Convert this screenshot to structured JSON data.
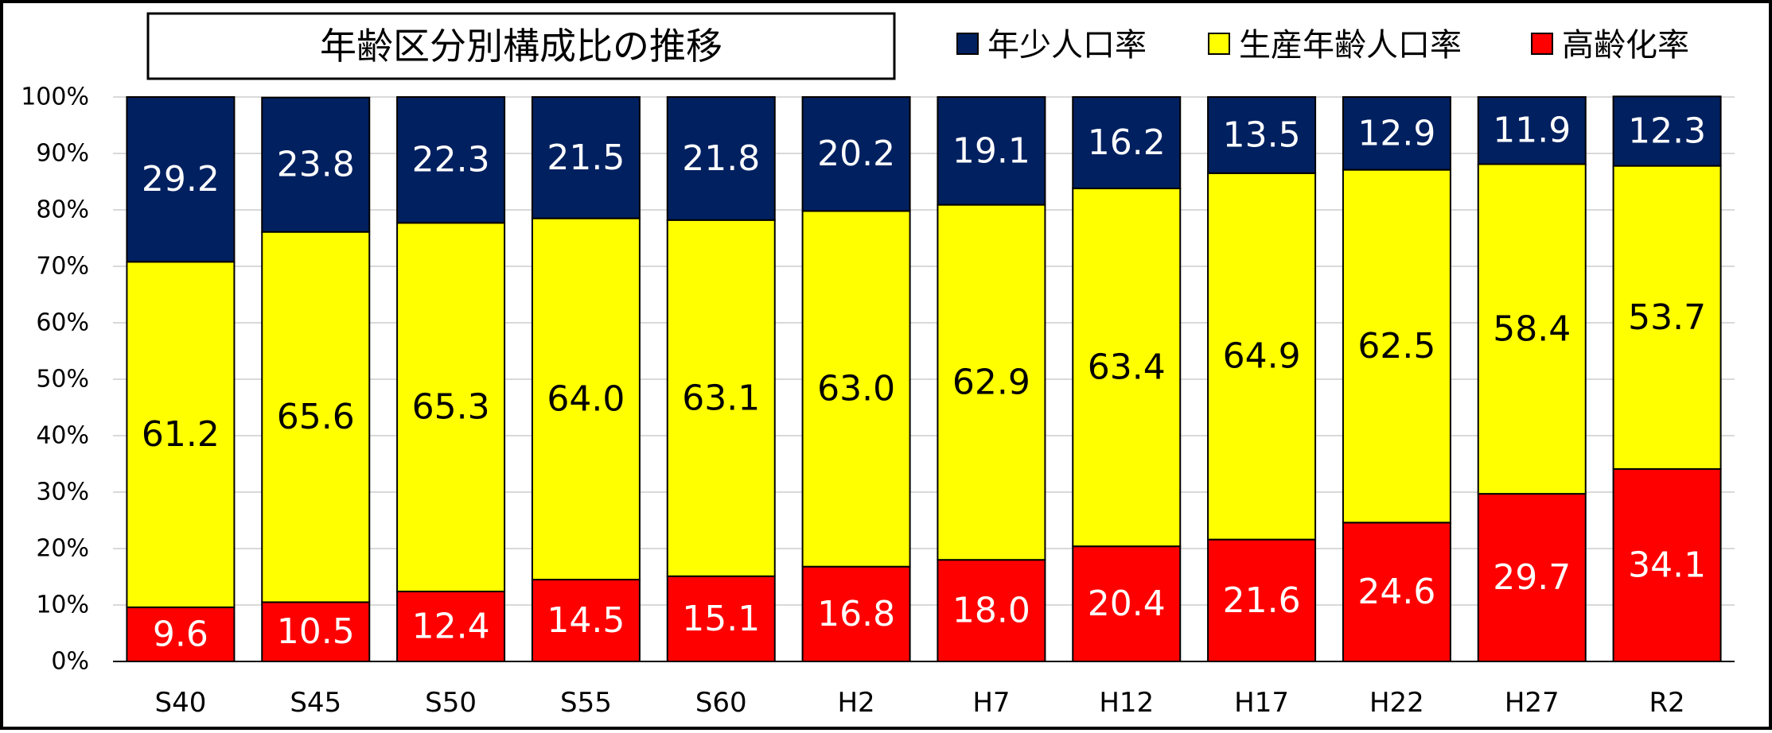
{
  "chart_data": {
    "type": "bar",
    "stacked": true,
    "title": "年齢区分別構成比の推移",
    "xlabel": "",
    "ylabel": "",
    "ylim": [
      0,
      100
    ],
    "y_ticks": [
      "0%",
      "10%",
      "20%",
      "30%",
      "40%",
      "50%",
      "60%",
      "70%",
      "80%",
      "90%",
      "100%"
    ],
    "grid": true,
    "legend_position": "top-right",
    "categories": [
      "S40",
      "S45",
      "S50",
      "S55",
      "S60",
      "H2",
      "H7",
      "H12",
      "H17",
      "H22",
      "H27",
      "R2"
    ],
    "series": [
      {
        "name": "高齢化率",
        "color": "#ff0000",
        "label_color": "#ffffff",
        "values": [
          9.6,
          10.5,
          12.4,
          14.5,
          15.1,
          16.8,
          18.0,
          20.4,
          21.6,
          24.6,
          29.7,
          34.1
        ],
        "labels": [
          "9.6",
          "10.5",
          "12.4",
          "14.5",
          "15.1",
          "16.8",
          "18.0",
          "20.4",
          "21.6",
          "24.6",
          "29.7",
          "34.1"
        ]
      },
      {
        "name": "生産年齢人口率",
        "color": "#ffff00",
        "label_color": "#000000",
        "values": [
          61.2,
          65.6,
          65.3,
          64.0,
          63.1,
          63.0,
          62.9,
          63.4,
          64.9,
          62.5,
          58.4,
          53.7
        ],
        "labels": [
          "61.2",
          "65.6",
          "65.3",
          "64.0",
          "63.1",
          "63.0",
          "62.9",
          "63.4",
          "64.9",
          "62.5",
          "58.4",
          "53.7"
        ]
      },
      {
        "name": "年少人口率",
        "color": "#002060",
        "label_color": "#ffffff",
        "values": [
          29.2,
          23.8,
          22.3,
          21.5,
          21.8,
          20.2,
          19.1,
          16.2,
          13.5,
          12.9,
          11.9,
          12.3
        ],
        "labels": [
          "29.2",
          "23.8",
          "22.3",
          "21.5",
          "21.8",
          "20.2",
          "19.1",
          "16.2",
          "13.5",
          "12.9",
          "11.9",
          "12.3"
        ]
      }
    ],
    "legend_order": [
      2,
      1,
      0
    ]
  }
}
